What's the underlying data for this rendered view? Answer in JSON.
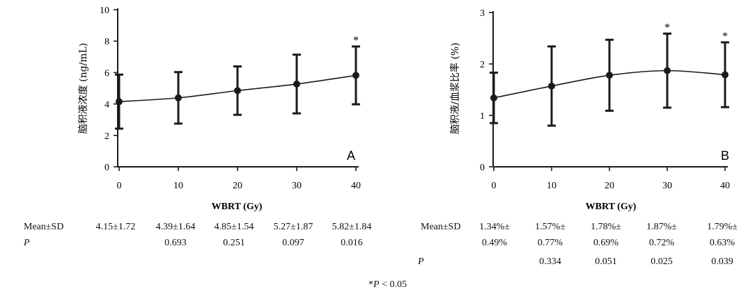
{
  "chart_data": [
    {
      "type": "line",
      "panel_label": "A",
      "xlabel": "WBRT (Gy)",
      "ylabel": "脑积液浓度 (ng/mL)",
      "x": [
        0,
        10,
        20,
        30,
        40
      ],
      "xticks": [
        "0",
        "10",
        "20",
        "30",
        "40"
      ],
      "ylim": [
        0,
        10
      ],
      "yticks": [
        "0",
        "2",
        "4",
        "6",
        "8",
        "10"
      ],
      "series": [
        {
          "values": [
            4.15,
            4.39,
            4.85,
            5.27,
            5.82
          ],
          "error": [
            1.72,
            1.64,
            1.54,
            1.87,
            1.84
          ]
        }
      ],
      "significant": [
        false,
        false,
        false,
        false,
        true
      ],
      "star_label": "*",
      "table": {
        "row1_label": "Mean±SD",
        "row1": [
          "4.15±1.72",
          "4.39±1.64",
          "4.85±1.54",
          "5.27±1.87",
          "5.82±1.84"
        ],
        "row2_label": "P",
        "row2": [
          "",
          "0.693",
          "0.251",
          "0.097",
          "0.016"
        ]
      }
    },
    {
      "type": "line",
      "panel_label": "B",
      "xlabel": "WBRT (Gy)",
      "ylabel": "脑积液/血浆比率 (%)",
      "x": [
        0,
        10,
        20,
        30,
        40
      ],
      "xticks": [
        "0",
        "10",
        "20",
        "30",
        "40"
      ],
      "ylim": [
        0,
        3
      ],
      "yticks": [
        "0",
        "1",
        "2",
        "3"
      ],
      "series": [
        {
          "values": [
            1.34,
            1.57,
            1.78,
            1.87,
            1.79
          ],
          "error": [
            0.49,
            0.77,
            0.69,
            0.72,
            0.63
          ]
        }
      ],
      "significant": [
        false,
        false,
        false,
        true,
        true
      ],
      "star_label": "*",
      "table": {
        "row1_label": "Mean±SD",
        "row1_top": [
          "1.34%±",
          "1.57%±",
          "1.78%±",
          "1.87%±",
          "1.79%±"
        ],
        "row1_bottom": [
          "0.49%",
          "0.77%",
          "0.69%",
          "0.72%",
          "0.63%"
        ],
        "row2_label": "P",
        "row2": [
          "",
          "0.334",
          "0.051",
          "0.025",
          "0.039"
        ]
      }
    }
  ],
  "footnote": {
    "star": "*",
    "p": "P",
    "rest": " < 0.05"
  }
}
